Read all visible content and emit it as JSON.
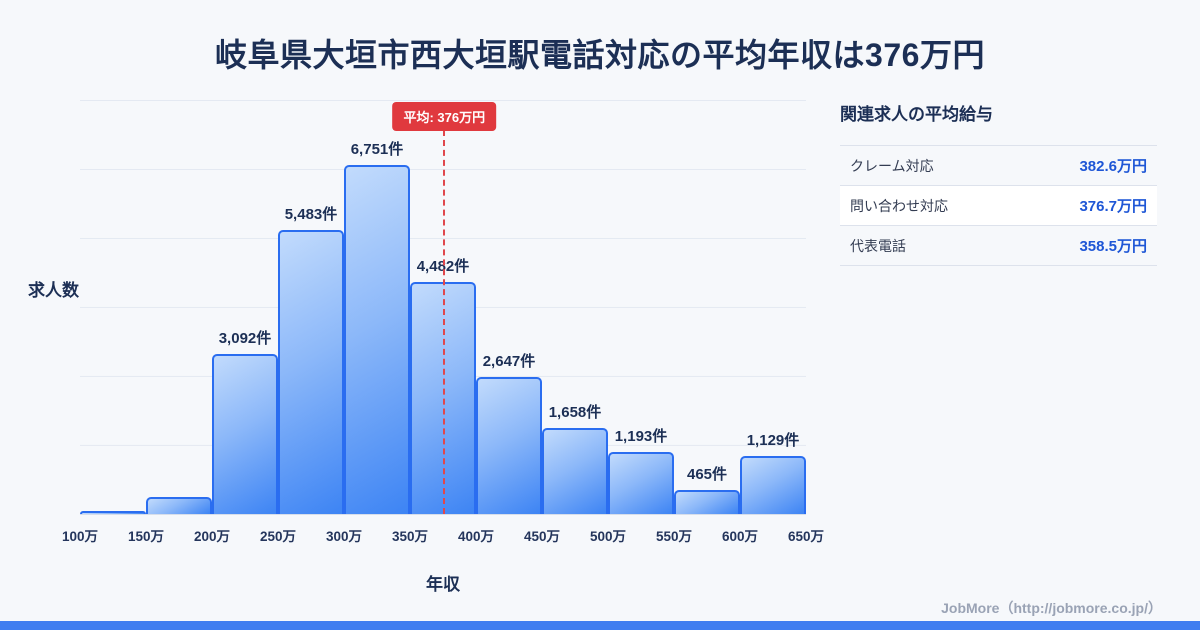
{
  "header": {
    "title": "岐阜県大垣市西大垣駅電話対応の平均年収は376万円"
  },
  "chart_data": {
    "type": "bar",
    "title": "岐阜県大垣市西大垣駅電話対応の平均年収は376万円",
    "xlabel": "年収",
    "ylabel": "求人数",
    "x_min": 100,
    "x_max": 650,
    "bin_width": 50,
    "x_ticks": [
      "100万",
      "150万",
      "200万",
      "250万",
      "300万",
      "350万",
      "400万",
      "450万",
      "500万",
      "550万",
      "600万",
      "650万"
    ],
    "values": [
      52,
      330,
      3092,
      5483,
      6751,
      4482,
      2647,
      1658,
      1193,
      465,
      1129
    ],
    "bar_labels": [
      "",
      "",
      "3,092件",
      "5,483件",
      "6,751件",
      "4,482件",
      "2,647件",
      "1,658件",
      "1,193件",
      "465件",
      "1,129件"
    ],
    "ymax": 8000,
    "grid": true,
    "legend": "none",
    "average": {
      "value": 376,
      "label": "平均: 376万円"
    }
  },
  "sidebar": {
    "title": "関連求人の平均給与",
    "rows": [
      {
        "label": "クレーム対応",
        "value": "382.6万円"
      },
      {
        "label": "問い合わせ対応",
        "value": "376.7万円"
      },
      {
        "label": "代表電話",
        "value": "358.5万円"
      }
    ]
  },
  "footer": {
    "credit": "JobMore（http://jobmore.co.jp/）"
  },
  "colors": {
    "background": "#f6f8fb",
    "title_navy": "#1c2f55",
    "bar_border_blue": "#2a6df0",
    "bar_fill_light": "#c2dbfc",
    "bar_fill_dark": "#3d84f4",
    "badge_red": "#e0393e",
    "value_blue": "#1e56d6",
    "bottom_bar_blue": "#3f7df0"
  }
}
